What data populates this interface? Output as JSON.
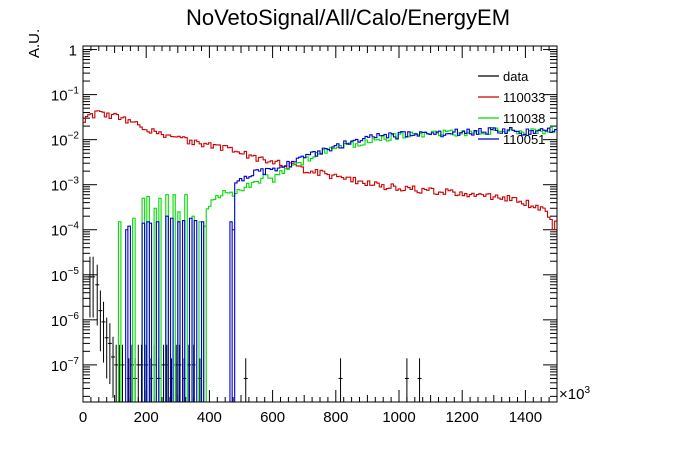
{
  "chart_data": {
    "type": "histogram",
    "title": "NoVetoSignal/All/Calo/EnergyEM",
    "ylabel": "A.U.",
    "xlabel": "",
    "x_multiplier": "10",
    "x_multiplier_exp": "3",
    "xlim": [
      0,
      1500
    ],
    "ylim": [
      1.5e-08,
      1.2
    ],
    "y_scale": "log",
    "x_ticks": [
      0,
      200,
      400,
      600,
      800,
      1000,
      1200,
      1400
    ],
    "x_tick_labels": [
      "0",
      "200",
      "400",
      "600",
      "800",
      "1000",
      "1200",
      "1400"
    ],
    "y_ticks": [
      1e-07,
      1e-06,
      1e-05,
      0.0001,
      0.001,
      0.01,
      0.1,
      1
    ],
    "y_tick_labels": [
      {
        "base": "10",
        "exp": "−7"
      },
      {
        "base": "10",
        "exp": "−6"
      },
      {
        "base": "10",
        "exp": "−5"
      },
      {
        "base": "10",
        "exp": "−4"
      },
      {
        "base": "10",
        "exp": "−3"
      },
      {
        "base": "10",
        "exp": "−2"
      },
      {
        "base": "10",
        "exp": "−1"
      },
      {
        "base": "1",
        "exp": ""
      }
    ],
    "legend": {
      "placement": "top-right",
      "entries": [
        {
          "name": "data",
          "color": "#000000"
        },
        {
          "name": "110033",
          "color": "#cc0000"
        },
        {
          "name": "110038",
          "color": "#00dd00"
        },
        {
          "name": "110051",
          "color": "#0000cc"
        }
      ]
    },
    "series": [
      {
        "name": "data",
        "style": "points-with-errors",
        "color": "#000000",
        "points": [
          [
            22,
            9e-06
          ],
          [
            32,
            9e-06
          ],
          [
            45,
            6e-06
          ],
          [
            55,
            1.6e-06
          ],
          [
            65,
            9e-07
          ],
          [
            75,
            4e-07
          ],
          [
            85,
            3e-07
          ],
          [
            95,
            1.5e-07
          ],
          [
            105,
            1e-07
          ],
          [
            115,
            1e-07
          ],
          [
            125,
            1e-07
          ],
          [
            145,
            5e-08
          ],
          [
            155,
            1e-07
          ],
          [
            165,
            5e-08
          ],
          [
            175,
            1e-07
          ],
          [
            185,
            1e-07
          ],
          [
            200,
            1e-07
          ],
          [
            215,
            5e-08
          ],
          [
            225,
            1e-07
          ],
          [
            240,
            5e-08
          ],
          [
            255,
            1e-07
          ],
          [
            265,
            1e-07
          ],
          [
            280,
            5e-08
          ],
          [
            295,
            1e-07
          ],
          [
            305,
            1e-07
          ],
          [
            320,
            5e-08
          ],
          [
            335,
            1e-07
          ],
          [
            350,
            1e-07
          ],
          [
            370,
            5e-08
          ],
          [
            515,
            5e-08
          ],
          [
            815,
            5e-08
          ],
          [
            1025,
            5e-08
          ],
          [
            1065,
            5e-08
          ]
        ]
      },
      {
        "name": "110033",
        "style": "step",
        "color": "#cc0000",
        "bin_width": 7.5,
        "anchors": [
          [
            0,
            0.028
          ],
          [
            25,
            0.036
          ],
          [
            50,
            0.038
          ],
          [
            75,
            0.034
          ],
          [
            100,
            0.033
          ],
          [
            150,
            0.025
          ],
          [
            200,
            0.018
          ],
          [
            250,
            0.013
          ],
          [
            300,
            0.011
          ],
          [
            350,
            0.009
          ],
          [
            400,
            0.0075
          ],
          [
            450,
            0.0065
          ],
          [
            500,
            0.005
          ],
          [
            550,
            0.004
          ],
          [
            600,
            0.0033
          ],
          [
            650,
            0.0027
          ],
          [
            700,
            0.0022
          ],
          [
            750,
            0.0018
          ],
          [
            800,
            0.0015
          ],
          [
            850,
            0.0013
          ],
          [
            900,
            0.0011
          ],
          [
            950,
            0.00095
          ],
          [
            1000,
            0.00085
          ],
          [
            1050,
            0.0008
          ],
          [
            1100,
            0.00075
          ],
          [
            1150,
            0.0007
          ],
          [
            1200,
            0.00065
          ],
          [
            1250,
            0.0006
          ],
          [
            1300,
            0.00055
          ],
          [
            1350,
            0.0005
          ],
          [
            1400,
            0.0004
          ],
          [
            1450,
            0.0003
          ],
          [
            1475,
            0.00022
          ],
          [
            1490,
            0.0001
          ],
          [
            1500,
            0.0002
          ]
        ]
      },
      {
        "name": "110038",
        "style": "step",
        "color": "#00dd00",
        "bin_width": 7.5,
        "spikes": [
          [
            112,
            120,
            0.00015
          ],
          [
            157,
            165,
            0.00018
          ],
          [
            187,
            195,
            0.0005
          ],
          [
            202,
            210,
            0.00055
          ],
          [
            225,
            232,
            0.0003
          ],
          [
            240,
            247,
            0.0005
          ],
          [
            262,
            270,
            0.0006
          ],
          [
            285,
            292,
            0.0006
          ],
          [
            300,
            307,
            0.00025
          ],
          [
            322,
            330,
            0.0006
          ],
          [
            345,
            352,
            0.0002
          ],
          [
            367,
            375,
            0.00015
          ],
          [
            382,
            390,
            0.00012
          ]
        ],
        "anchors": [
          [
            390,
            0.0003
          ],
          [
            420,
            0.0005
          ],
          [
            450,
            0.0007
          ],
          [
            480,
            0.00065
          ],
          [
            510,
            0.0009
          ],
          [
            540,
            0.001
          ],
          [
            570,
            0.0015
          ],
          [
            600,
            0.0013
          ],
          [
            630,
            0.002
          ],
          [
            660,
            0.0025
          ],
          [
            700,
            0.0035
          ],
          [
            750,
            0.005
          ],
          [
            800,
            0.0065
          ],
          [
            850,
            0.008
          ],
          [
            900,
            0.009
          ],
          [
            950,
            0.011
          ],
          [
            1000,
            0.012
          ],
          [
            1050,
            0.013
          ],
          [
            1100,
            0.013
          ],
          [
            1150,
            0.014
          ],
          [
            1200,
            0.014
          ],
          [
            1250,
            0.015
          ],
          [
            1300,
            0.016
          ],
          [
            1350,
            0.016
          ],
          [
            1400,
            0.015
          ],
          [
            1450,
            0.016
          ],
          [
            1500,
            0.016
          ]
        ]
      },
      {
        "name": "110051",
        "style": "step",
        "color": "#0000cc",
        "bin_width": 7.5,
        "spikes": [
          [
            135,
            142,
            0.0001
          ],
          [
            142,
            150,
            0.00012
          ],
          [
            187,
            195,
            0.00014
          ],
          [
            202,
            210,
            0.00015
          ],
          [
            210,
            217,
            0.00014
          ],
          [
            232,
            240,
            0.00015
          ],
          [
            262,
            270,
            0.0002
          ],
          [
            277,
            285,
            0.00018
          ],
          [
            300,
            307,
            0.00015
          ],
          [
            315,
            322,
            0.00016
          ],
          [
            337,
            345,
            0.00018
          ],
          [
            352,
            360,
            0.00016
          ],
          [
            375,
            382,
            0.00015
          ],
          [
            465,
            472,
            0.00015
          ],
          [
            472,
            480,
            0.0001
          ]
        ],
        "anchors": [
          [
            480,
            0.0009
          ],
          [
            510,
            0.0015
          ],
          [
            540,
            0.0018
          ],
          [
            570,
            0.002
          ],
          [
            600,
            0.002
          ],
          [
            630,
            0.0025
          ],
          [
            660,
            0.003
          ],
          [
            700,
            0.004
          ],
          [
            750,
            0.0055
          ],
          [
            800,
            0.007
          ],
          [
            850,
            0.009
          ],
          [
            900,
            0.011
          ],
          [
            950,
            0.012
          ],
          [
            1000,
            0.013
          ],
          [
            1050,
            0.013
          ],
          [
            1100,
            0.014
          ],
          [
            1150,
            0.014
          ],
          [
            1200,
            0.015
          ],
          [
            1250,
            0.015
          ],
          [
            1300,
            0.016
          ],
          [
            1350,
            0.016
          ],
          [
            1400,
            0.015
          ],
          [
            1450,
            0.016
          ],
          [
            1500,
            0.015
          ]
        ]
      }
    ]
  }
}
